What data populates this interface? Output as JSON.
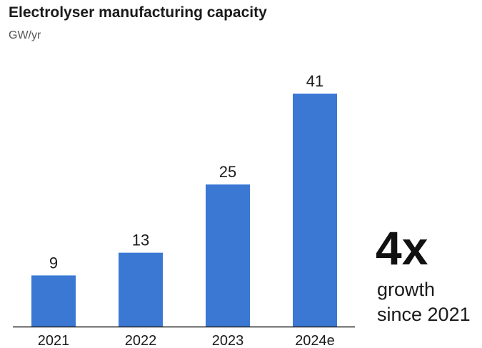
{
  "chart_data": {
    "type": "bar",
    "title": "Electrolyser manufacturing capacity",
    "subtitle": "GW/yr",
    "categories": [
      "2021",
      "2022",
      "2023",
      "2024e"
    ],
    "values": [
      9,
      13,
      25,
      41
    ],
    "ylim": [
      0,
      41
    ],
    "grid": false,
    "legend": "none",
    "bar_color": "#3a78d4",
    "axis_color": "#222222"
  },
  "callout": {
    "value": "4x",
    "line1": "growth",
    "line2": "since 2021"
  }
}
